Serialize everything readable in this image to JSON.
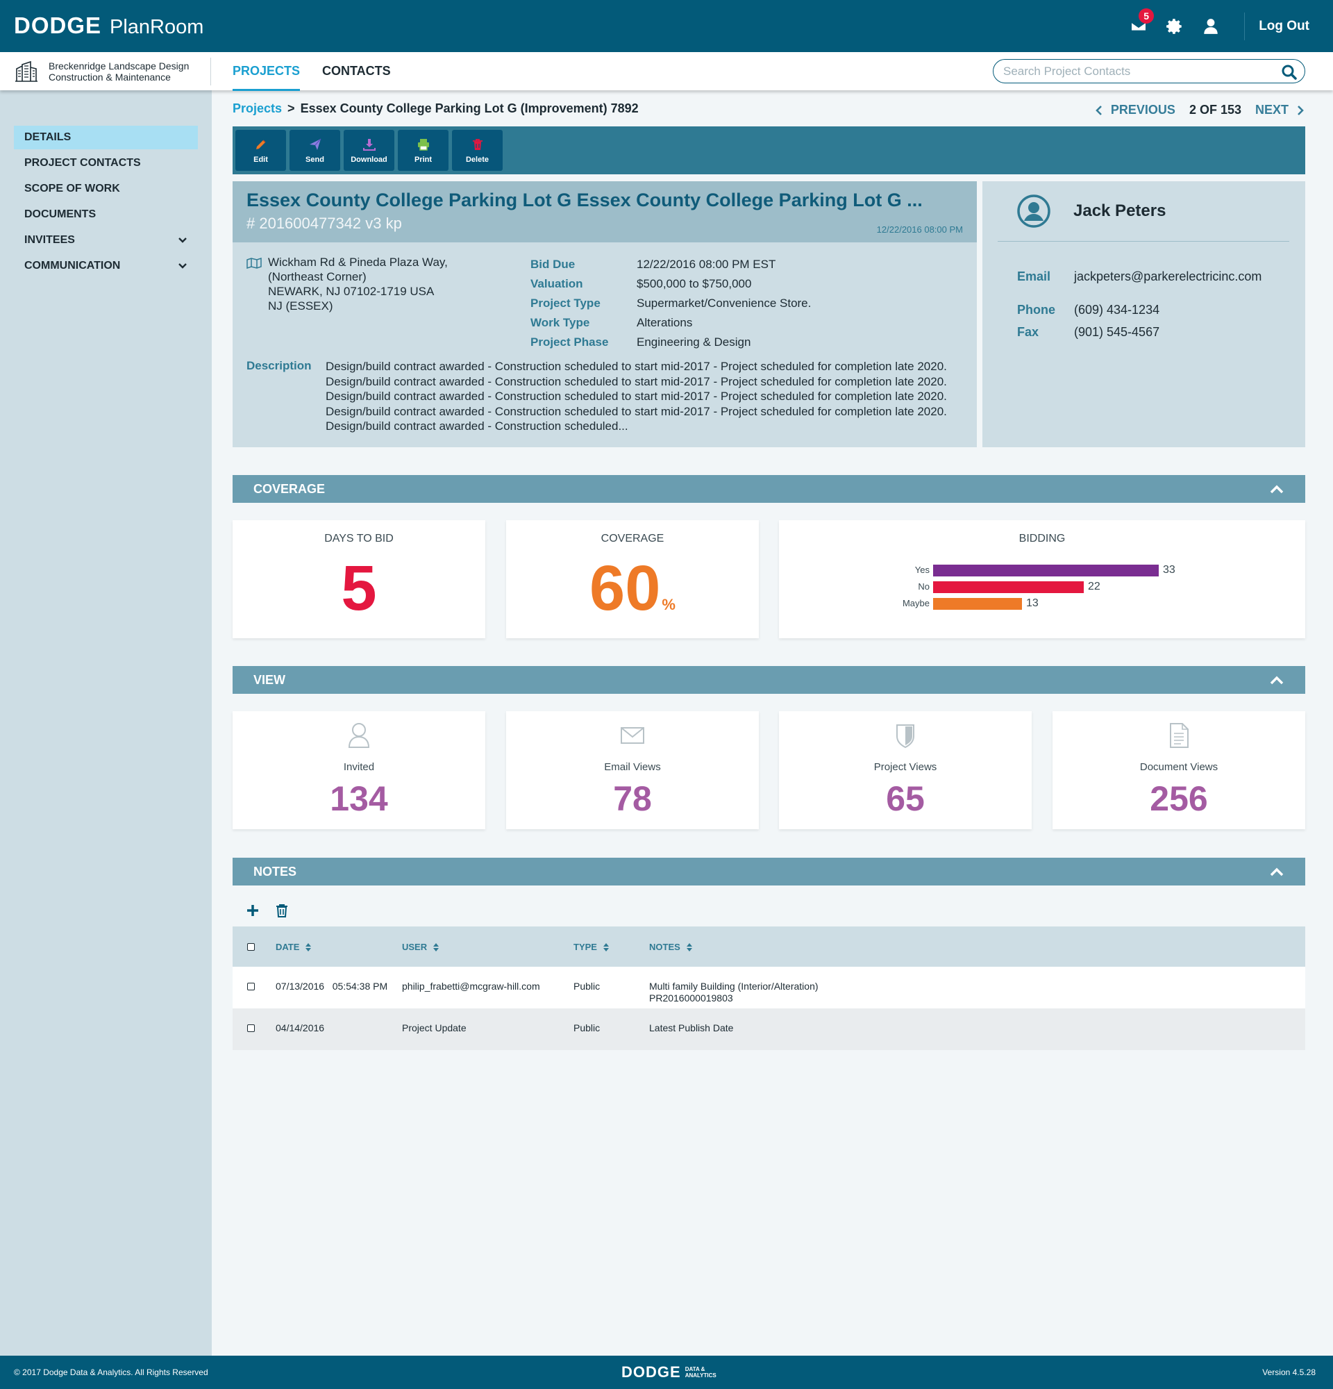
{
  "app": {
    "brand": "DODGE",
    "product": "PlanRoom",
    "logout_label": "Log Out",
    "mail_badge": "5"
  },
  "company": {
    "line1": "Breckenridge Landscape Design",
    "line2": "Construction & Maintenance"
  },
  "nav": {
    "projects": "PROJECTS",
    "contacts": "CONTACTS"
  },
  "search": {
    "placeholder": "Search Project Contacts"
  },
  "sidebar": {
    "items": [
      {
        "label": "DETAILS"
      },
      {
        "label": "PROJECT CONTACTS"
      },
      {
        "label": "SCOPE OF WORK"
      },
      {
        "label": "DOCUMENTS"
      },
      {
        "label": "INVITEES"
      },
      {
        "label": "COMMUNICATION"
      }
    ]
  },
  "breadcrumb": {
    "root": "Projects",
    "sep": ">",
    "current": "Essex County College Parking Lot G (Improvement) 7892"
  },
  "pager": {
    "previous": "PREVIOUS",
    "count": "2 OF 153",
    "next": "NEXT"
  },
  "toolbar": {
    "edit": "Edit",
    "send": "Send",
    "download": "Download",
    "print": "Print",
    "delete": "Delete"
  },
  "project": {
    "title": "Essex County College Parking Lot G Essex County College Parking Lot G ...",
    "number": "# 201600477342 v3 kp",
    "date": "12/22/2016 08:00 PM",
    "address": [
      "Wickham Rd & Pineda Plaza Way,",
      "(Northeast Corner)",
      "NEWARK, NJ 07102-1719 USA",
      "NJ (ESSEX)"
    ],
    "fields": [
      {
        "k": "Bid Due",
        "v": "12/22/2016 08:00 PM EST"
      },
      {
        "k": "Valuation",
        "v": "$500,000 to $750,000"
      },
      {
        "k": "Project Type",
        "v": "Supermarket/Convenience Store."
      },
      {
        "k": "Work Type",
        "v": "Alterations"
      },
      {
        "k": "Project Phase",
        "v": "Engineering & Design"
      }
    ],
    "description_label": "Description",
    "description": "Design/build contract awarded - Construction scheduled to start mid-2017 - Project scheduled for completion late 2020. Design/build contract awarded - Construction scheduled to start mid-2017 - Project scheduled for completion late 2020. Design/build contract awarded - Construction scheduled to start mid-2017 - Project scheduled for completion late 2020. Design/build contract awarded - Construction scheduled to start mid-2017 - Project scheduled for completion late 2020. Design/build contract awarded - Construction scheduled..."
  },
  "contact": {
    "name": "Jack Peters",
    "email_label": "Email",
    "email": "jackpeters@parkerelectricinc.com",
    "phone_label": "Phone",
    "phone": "(609) 434-1234",
    "fax_label": "Fax",
    "fax": "(901) 545-4567"
  },
  "coverage": {
    "header": "COVERAGE",
    "days_label": "DAYS TO BID",
    "days_value": "5",
    "coverage_label": "COVERAGE",
    "coverage_value": "60",
    "coverage_unit": "%",
    "bidding_label": "BIDDING"
  },
  "chart_data": {
    "type": "bar",
    "title": "BIDDING",
    "orientation": "horizontal",
    "categories": [
      "Yes",
      "No",
      "Maybe"
    ],
    "values": [
      33,
      22,
      13
    ],
    "colors": [
      "#7a2d91",
      "#e4173f",
      "#ee7a27"
    ]
  },
  "view": {
    "header": "VIEW",
    "cards": [
      {
        "label": "Invited",
        "value": "134",
        "icon": "person-icon"
      },
      {
        "label": "Email Views",
        "value": "78",
        "icon": "envelope-icon"
      },
      {
        "label": "Project Views",
        "value": "65",
        "icon": "shield-icon"
      },
      {
        "label": "Document Views",
        "value": "256",
        "icon": "document-icon"
      }
    ]
  },
  "notes": {
    "header": "NOTES",
    "columns": {
      "date": "DATE",
      "user": "USER",
      "type": "TYPE",
      "notes": "NOTES"
    },
    "rows": [
      {
        "date": "07/13/2016",
        "time": "05:54:38 PM",
        "user": "philip_frabetti@mcgraw-hill.com",
        "type": "Public",
        "notes": "Multi family Building (Interior/Alteration)",
        "notes2": "PR2016000019803"
      },
      {
        "date": "04/14/2016",
        "time": "",
        "user": "Project Update",
        "type": "Public",
        "notes": "Latest Publish Date",
        "notes2": ""
      }
    ]
  },
  "footer": {
    "copyright": "© 2017 Dodge Data & Analytics. All Rights Reserved",
    "brand": "DODGE",
    "tag1": "DATA &",
    "tag2": "ANALYTICS",
    "version": "Version 4.5.28"
  },
  "colors": {
    "primary": "#035a79",
    "accent": "#1a9fd0",
    "danger": "#e4173f",
    "orange": "#ee7a27",
    "purple": "#a45ba2"
  }
}
